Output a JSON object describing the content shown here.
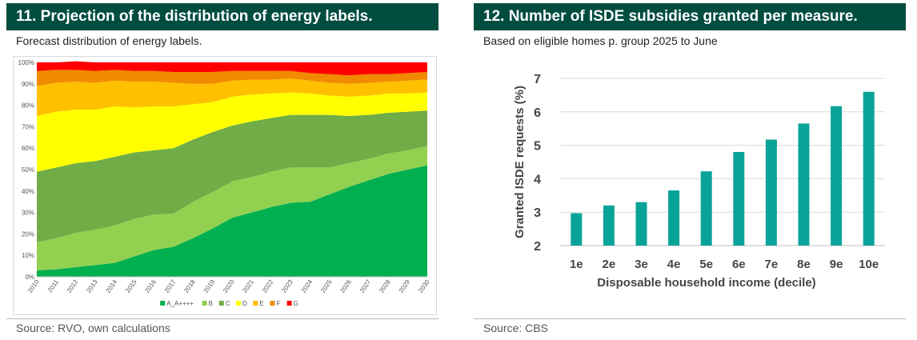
{
  "left": {
    "title": "11.  Projection of the distribution of energy labels.",
    "subtitle": "Forecast distribution of energy labels.",
    "source": "Source: RVO, own calculations"
  },
  "right": {
    "title": "12.  Number of ISDE subsidies granted per measure.",
    "subtitle": "Based on eligible homes p. group 2025 to June",
    "source": "Source: CBS"
  },
  "chart_data": [
    {
      "type": "area",
      "stacked": true,
      "percent": true,
      "x": [
        "2010",
        "2011",
        "2012",
        "2013",
        "2014",
        "2015",
        "2016",
        "2017",
        "2018",
        "2019",
        "2020",
        "2021",
        "2022",
        "2023",
        "2024",
        "2025",
        "2026",
        "2027",
        "2028",
        "2029",
        "2030"
      ],
      "y_ticks": [
        "0%",
        "10%",
        "20%",
        "30%",
        "40%",
        "50%",
        "60%",
        "70%",
        "80%",
        "90%",
        "100%"
      ],
      "ylim": [
        0,
        100
      ],
      "legend_position": "bottom",
      "series": [
        {
          "name": "A_A++++",
          "color": "#00b050",
          "values": [
            3,
            3.5,
            4.5,
            5.5,
            6.5,
            9.5,
            12.5,
            14,
            18,
            22.5,
            27.5,
            30,
            32.5,
            34.5,
            35,
            38.5,
            42,
            45,
            48,
            50,
            52
          ]
        },
        {
          "name": "B",
          "color": "#92d050",
          "values": [
            13,
            14.5,
            16,
            16.5,
            17.5,
            17.5,
            16.5,
            15.5,
            17,
            17,
            17,
            16.5,
            16.5,
            16.5,
            16,
            12.5,
            11,
            10,
            9.5,
            9,
            9
          ]
        },
        {
          "name": "C",
          "color": "#70ad47",
          "values": [
            33,
            33,
            32.5,
            32,
            32,
            31,
            30,
            30.5,
            29,
            28,
            26,
            26,
            25,
            24.5,
            24.5,
            24.5,
            22,
            20.5,
            19,
            18,
            16.5
          ]
        },
        {
          "name": "D",
          "color": "#ffff00",
          "values": [
            26,
            26,
            25,
            24,
            23.5,
            21,
            20.5,
            19.5,
            16.5,
            14,
            13.5,
            12.5,
            11.5,
            10.5,
            10,
            9,
            9,
            9,
            9,
            8.5,
            8.5
          ]
        },
        {
          "name": "E",
          "color": "#ffc000",
          "values": [
            14,
            13.5,
            13,
            12.5,
            12,
            12,
            11.5,
            11,
            9.5,
            8.5,
            7.5,
            7,
            6.5,
            6.5,
            6,
            6,
            6,
            6,
            5.5,
            6,
            6
          ]
        },
        {
          "name": "F",
          "color": "#f18a00",
          "values": [
            7,
            6,
            5.5,
            5.5,
            5,
            5,
            5,
            5,
            5.5,
            5.5,
            4.5,
            4,
            4,
            3.5,
            3.5,
            4,
            4,
            4,
            3.5,
            3.5,
            3.5
          ]
        },
        {
          "name": "G",
          "color": "#ff0000",
          "values": [
            4,
            3.5,
            4,
            4,
            3.5,
            4,
            4,
            4.5,
            4.5,
            4.5,
            4,
            4,
            4,
            4,
            5,
            5.5,
            6,
            5.5,
            5.5,
            5,
            4.5
          ]
        }
      ]
    },
    {
      "type": "bar",
      "categories": [
        "1e",
        "2e",
        "3e",
        "4e",
        "5e",
        "6e",
        "7e",
        "8e",
        "9e",
        "10e"
      ],
      "values": [
        2.97,
        3.2,
        3.3,
        3.65,
        4.22,
        4.8,
        5.17,
        5.65,
        6.17,
        6.6
      ],
      "xlabel": "Disposable household income (decile)",
      "ylabel": "Granted ISDE requests (%)",
      "ylim": [
        2,
        7
      ],
      "y_ticks": [
        2,
        3,
        4,
        5,
        6,
        7
      ],
      "color": "#0aa39a"
    }
  ]
}
